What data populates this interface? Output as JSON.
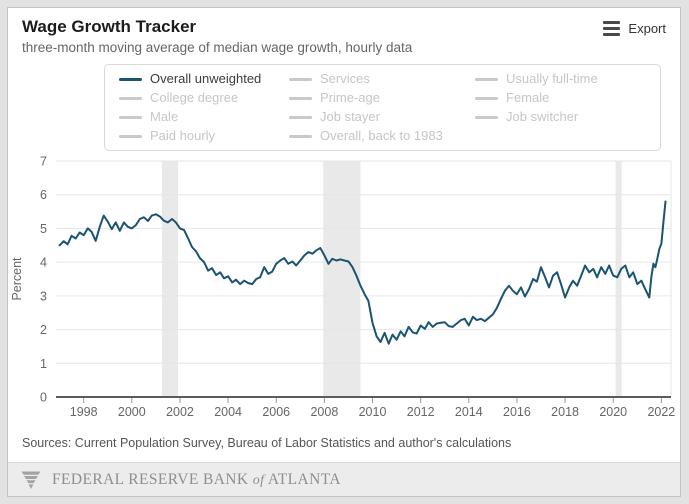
{
  "header": {
    "title": "Wage Growth Tracker",
    "subtitle": "three-month moving average of median wage growth, hourly data",
    "export_label": "Export"
  },
  "legend": {
    "items": [
      {
        "label": "Overall unweighted",
        "active": true
      },
      {
        "label": "Services",
        "active": false
      },
      {
        "label": "Usually full-time",
        "active": false
      },
      {
        "label": "College degree",
        "active": false
      },
      {
        "label": "Prime-age",
        "active": false
      },
      {
        "label": "Female",
        "active": false
      },
      {
        "label": "Male",
        "active": false
      },
      {
        "label": "Job stayer",
        "active": false
      },
      {
        "label": "Job switcher",
        "active": false
      },
      {
        "label": "Paid hourly",
        "active": false
      },
      {
        "label": "Overall, back to 1983",
        "active": false
      }
    ]
  },
  "colors": {
    "line": "#1b5372",
    "inactive_legend": "#c9c9c9",
    "recession_band": "#e9e9e9",
    "gridline": "#e6e6e6",
    "axis_line": "#5b5b5b",
    "tick_text": "#666666"
  },
  "chart_data": {
    "type": "line",
    "title": "Wage Growth Tracker",
    "xlabel": "",
    "ylabel": "Percent",
    "ylim": [
      0,
      7
    ],
    "yticks": [
      0,
      1,
      2,
      3,
      4,
      5,
      6,
      7
    ],
    "xticks": [
      1998,
      2000,
      2002,
      2004,
      2006,
      2008,
      2010,
      2012,
      2014,
      2016,
      2018,
      2020,
      2022
    ],
    "xlim": [
      1996.85,
      2022.4
    ],
    "grid": "horizontal-only",
    "legend_position": "top",
    "recession_bands": [
      [
        2001.25,
        2001.92
      ],
      [
        2007.95,
        2009.5
      ],
      [
        2020.1,
        2020.35
      ]
    ],
    "series": [
      {
        "name": "Overall unweighted",
        "color": "#1b5372",
        "points": [
          [
            1997.0,
            4.5
          ],
          [
            1997.17,
            4.62
          ],
          [
            1997.33,
            4.53
          ],
          [
            1997.5,
            4.78
          ],
          [
            1997.67,
            4.7
          ],
          [
            1997.83,
            4.88
          ],
          [
            1998.0,
            4.8
          ],
          [
            1998.17,
            5.0
          ],
          [
            1998.33,
            4.9
          ],
          [
            1998.5,
            4.63
          ],
          [
            1998.67,
            5.05
          ],
          [
            1998.83,
            5.38
          ],
          [
            1999.0,
            5.2
          ],
          [
            1999.17,
            4.98
          ],
          [
            1999.33,
            5.18
          ],
          [
            1999.5,
            4.93
          ],
          [
            1999.67,
            5.18
          ],
          [
            1999.83,
            5.05
          ],
          [
            2000.0,
            5.0
          ],
          [
            2000.17,
            5.1
          ],
          [
            2000.33,
            5.28
          ],
          [
            2000.5,
            5.33
          ],
          [
            2000.67,
            5.22
          ],
          [
            2000.83,
            5.38
          ],
          [
            2001.0,
            5.42
          ],
          [
            2001.17,
            5.35
          ],
          [
            2001.33,
            5.23
          ],
          [
            2001.5,
            5.18
          ],
          [
            2001.67,
            5.28
          ],
          [
            2001.83,
            5.18
          ],
          [
            2002.0,
            5.0
          ],
          [
            2002.17,
            4.95
          ],
          [
            2002.33,
            4.72
          ],
          [
            2002.5,
            4.45
          ],
          [
            2002.67,
            4.32
          ],
          [
            2002.83,
            4.12
          ],
          [
            2003.0,
            4.0
          ],
          [
            2003.17,
            3.75
          ],
          [
            2003.33,
            3.82
          ],
          [
            2003.5,
            3.62
          ],
          [
            2003.67,
            3.7
          ],
          [
            2003.83,
            3.52
          ],
          [
            2004.0,
            3.58
          ],
          [
            2004.17,
            3.4
          ],
          [
            2004.33,
            3.48
          ],
          [
            2004.5,
            3.35
          ],
          [
            2004.67,
            3.45
          ],
          [
            2004.83,
            3.38
          ],
          [
            2005.0,
            3.35
          ],
          [
            2005.17,
            3.5
          ],
          [
            2005.33,
            3.55
          ],
          [
            2005.5,
            3.85
          ],
          [
            2005.67,
            3.65
          ],
          [
            2005.83,
            3.72
          ],
          [
            2006.0,
            3.95
          ],
          [
            2006.17,
            4.05
          ],
          [
            2006.33,
            4.12
          ],
          [
            2006.5,
            3.95
          ],
          [
            2006.67,
            4.02
          ],
          [
            2006.83,
            3.9
          ],
          [
            2007.0,
            4.05
          ],
          [
            2007.17,
            4.2
          ],
          [
            2007.33,
            4.3
          ],
          [
            2007.5,
            4.25
          ],
          [
            2007.67,
            4.35
          ],
          [
            2007.83,
            4.42
          ],
          [
            2008.0,
            4.2
          ],
          [
            2008.17,
            3.95
          ],
          [
            2008.33,
            4.1
          ],
          [
            2008.5,
            4.05
          ],
          [
            2008.67,
            4.08
          ],
          [
            2008.83,
            4.05
          ],
          [
            2009.0,
            4.02
          ],
          [
            2009.17,
            3.85
          ],
          [
            2009.33,
            3.6
          ],
          [
            2009.5,
            3.3
          ],
          [
            2009.67,
            3.05
          ],
          [
            2009.83,
            2.85
          ],
          [
            2010.0,
            2.2
          ],
          [
            2010.17,
            1.8
          ],
          [
            2010.33,
            1.63
          ],
          [
            2010.5,
            1.9
          ],
          [
            2010.67,
            1.58
          ],
          [
            2010.83,
            1.85
          ],
          [
            2011.0,
            1.7
          ],
          [
            2011.17,
            1.95
          ],
          [
            2011.33,
            1.8
          ],
          [
            2011.5,
            2.08
          ],
          [
            2011.67,
            1.92
          ],
          [
            2011.83,
            1.88
          ],
          [
            2012.0,
            2.12
          ],
          [
            2012.17,
            2.02
          ],
          [
            2012.33,
            2.22
          ],
          [
            2012.5,
            2.08
          ],
          [
            2012.67,
            2.18
          ],
          [
            2012.83,
            2.2
          ],
          [
            2013.0,
            2.22
          ],
          [
            2013.17,
            2.1
          ],
          [
            2013.33,
            2.08
          ],
          [
            2013.5,
            2.18
          ],
          [
            2013.67,
            2.28
          ],
          [
            2013.83,
            2.32
          ],
          [
            2014.0,
            2.12
          ],
          [
            2014.17,
            2.38
          ],
          [
            2014.33,
            2.28
          ],
          [
            2014.5,
            2.32
          ],
          [
            2014.67,
            2.25
          ],
          [
            2014.83,
            2.35
          ],
          [
            2015.0,
            2.45
          ],
          [
            2015.17,
            2.65
          ],
          [
            2015.33,
            2.9
          ],
          [
            2015.5,
            3.15
          ],
          [
            2015.67,
            3.3
          ],
          [
            2015.83,
            3.15
          ],
          [
            2016.0,
            3.05
          ],
          [
            2016.17,
            3.25
          ],
          [
            2016.33,
            2.98
          ],
          [
            2016.5,
            3.2
          ],
          [
            2016.67,
            3.5
          ],
          [
            2016.83,
            3.42
          ],
          [
            2017.0,
            3.85
          ],
          [
            2017.17,
            3.55
          ],
          [
            2017.33,
            3.25
          ],
          [
            2017.5,
            3.6
          ],
          [
            2017.67,
            3.7
          ],
          [
            2017.83,
            3.35
          ],
          [
            2018.0,
            2.95
          ],
          [
            2018.17,
            3.25
          ],
          [
            2018.33,
            3.45
          ],
          [
            2018.5,
            3.3
          ],
          [
            2018.67,
            3.6
          ],
          [
            2018.83,
            3.9
          ],
          [
            2019.0,
            3.7
          ],
          [
            2019.17,
            3.8
          ],
          [
            2019.33,
            3.55
          ],
          [
            2019.5,
            3.85
          ],
          [
            2019.67,
            3.65
          ],
          [
            2019.83,
            3.9
          ],
          [
            2020.0,
            3.6
          ],
          [
            2020.17,
            3.55
          ],
          [
            2020.33,
            3.8
          ],
          [
            2020.5,
            3.9
          ],
          [
            2020.67,
            3.55
          ],
          [
            2020.83,
            3.7
          ],
          [
            2021.0,
            3.35
          ],
          [
            2021.17,
            3.45
          ],
          [
            2021.33,
            3.2
          ],
          [
            2021.5,
            2.95
          ],
          [
            2021.58,
            3.55
          ],
          [
            2021.67,
            3.95
          ],
          [
            2021.75,
            3.85
          ],
          [
            2021.83,
            4.1
          ],
          [
            2021.92,
            4.4
          ],
          [
            2022.0,
            4.55
          ],
          [
            2022.08,
            5.15
          ],
          [
            2022.17,
            5.8
          ]
        ]
      }
    ],
    "inactive_series_names": [
      "Services",
      "Usually full-time",
      "College degree",
      "Prime-age",
      "Female",
      "Male",
      "Job stayer",
      "Job switcher",
      "Paid hourly",
      "Overall, back to 1983"
    ]
  },
  "footer": {
    "sources": "Sources: Current Population Survey, Bureau of Labor Statistics and author's calculations",
    "bank": {
      "pre": "FEDERAL RESERVE BANK",
      "of": "of",
      "post": "ATLANTA"
    }
  }
}
